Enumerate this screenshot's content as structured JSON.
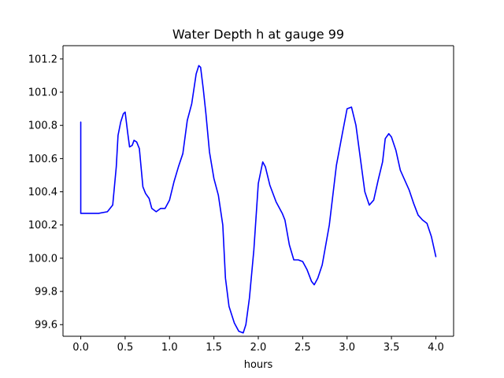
{
  "chart_data": {
    "type": "line",
    "title": "Water Depth h at gauge 99",
    "xlabel": "hours",
    "ylabel": "",
    "xlim": [
      -0.2,
      4.2
    ],
    "ylim": [
      99.53,
      101.28
    ],
    "grid": false,
    "xticks": [
      0.0,
      0.5,
      1.0,
      1.5,
      2.0,
      2.5,
      3.0,
      3.5,
      4.0
    ],
    "xtick_labels": [
      "0.0",
      "0.5",
      "1.0",
      "1.5",
      "2.0",
      "2.5",
      "3.0",
      "3.5",
      "4.0"
    ],
    "yticks": [
      99.6,
      99.8,
      100.0,
      100.2,
      100.4,
      100.6,
      100.8,
      101.0,
      101.2
    ],
    "ytick_labels": [
      "99.6",
      "99.8",
      "100.0",
      "100.2",
      "100.4",
      "100.6",
      "100.8",
      "101.0",
      "101.2"
    ],
    "series": [
      {
        "color": "#0000ff",
        "x": [
          0.0,
          0.0,
          0.1,
          0.2,
          0.3,
          0.36,
          0.4,
          0.42,
          0.45,
          0.48,
          0.5,
          0.53,
          0.55,
          0.58,
          0.6,
          0.63,
          0.66,
          0.7,
          0.73,
          0.77,
          0.8,
          0.85,
          0.9,
          0.95,
          1.0,
          1.05,
          1.1,
          1.15,
          1.2,
          1.25,
          1.3,
          1.33,
          1.35,
          1.38,
          1.41,
          1.45,
          1.5,
          1.55,
          1.6,
          1.63,
          1.67,
          1.7,
          1.73,
          1.78,
          1.83,
          1.86,
          1.9,
          1.95,
          2.0,
          2.05,
          2.08,
          2.13,
          2.2,
          2.27,
          2.3,
          2.35,
          2.4,
          2.45,
          2.5,
          2.55,
          2.6,
          2.63,
          2.67,
          2.72,
          2.8,
          2.88,
          2.95,
          3.0,
          3.05,
          3.1,
          3.15,
          3.2,
          3.25,
          3.3,
          3.35,
          3.4,
          3.43,
          3.47,
          3.5,
          3.55,
          3.6,
          3.65,
          3.7,
          3.75,
          3.8,
          3.85,
          3.9,
          3.95,
          4.0
        ],
        "y": [
          100.82,
          100.27,
          100.27,
          100.27,
          100.28,
          100.32,
          100.55,
          100.74,
          100.82,
          100.87,
          100.88,
          100.75,
          100.67,
          100.68,
          100.71,
          100.7,
          100.66,
          100.43,
          100.39,
          100.36,
          100.3,
          100.28,
          100.3,
          100.3,
          100.35,
          100.46,
          100.55,
          100.63,
          100.83,
          100.93,
          101.11,
          101.16,
          101.15,
          101.02,
          100.87,
          100.64,
          100.48,
          100.38,
          100.2,
          99.88,
          99.71,
          99.66,
          99.61,
          99.56,
          99.55,
          99.6,
          99.76,
          100.05,
          100.45,
          100.58,
          100.55,
          100.44,
          100.34,
          100.27,
          100.23,
          100.08,
          99.99,
          99.99,
          99.98,
          99.93,
          99.86,
          99.84,
          99.88,
          99.96,
          100.2,
          100.56,
          100.76,
          100.9,
          100.91,
          100.8,
          100.6,
          100.4,
          100.32,
          100.35,
          100.47,
          100.58,
          100.72,
          100.75,
          100.73,
          100.65,
          100.53,
          100.47,
          100.41,
          100.33,
          100.26,
          100.23,
          100.21,
          100.13,
          100.01
        ]
      }
    ]
  }
}
